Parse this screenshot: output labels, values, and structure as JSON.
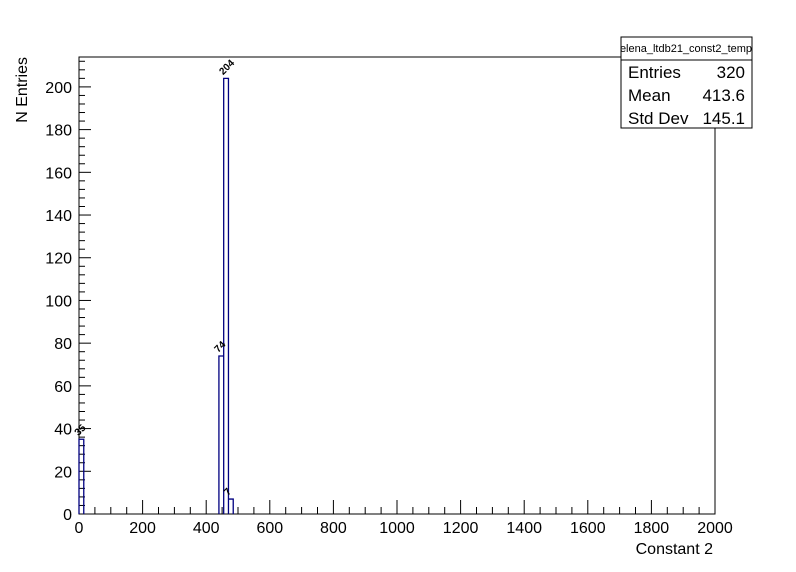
{
  "chart_data": {
    "type": "bar",
    "histogram_name": "elena_ltdb21_const2_temp",
    "xlabel": "Constant 2",
    "ylabel": "N Entries",
    "xlim": [
      0,
      2000
    ],
    "ylim": [
      0,
      214
    ],
    "bin_width": 15,
    "x_ticks": [
      0,
      200,
      400,
      600,
      800,
      1000,
      1200,
      1400,
      1600,
      1800,
      2000
    ],
    "y_ticks": [
      0,
      20,
      40,
      60,
      80,
      100,
      120,
      140,
      160,
      180,
      200
    ],
    "bins": [
      {
        "x0": 0,
        "x1": 15,
        "value": 35,
        "label": "35"
      },
      {
        "x0": 440,
        "x1": 455,
        "value": 74,
        "label": "74"
      },
      {
        "x0": 455,
        "x1": 470,
        "value": 204,
        "label": "204"
      },
      {
        "x0": 470,
        "x1": 485,
        "value": 7,
        "label": "7"
      }
    ],
    "grid": false,
    "line_color": "#000080",
    "stats": {
      "title": "elena_ltdb21_const2_temp",
      "rows": [
        {
          "label": "Entries",
          "value": "320"
        },
        {
          "label": "Mean",
          "value": "413.6"
        },
        {
          "label": "Std Dev",
          "value": "145.1"
        }
      ]
    }
  }
}
